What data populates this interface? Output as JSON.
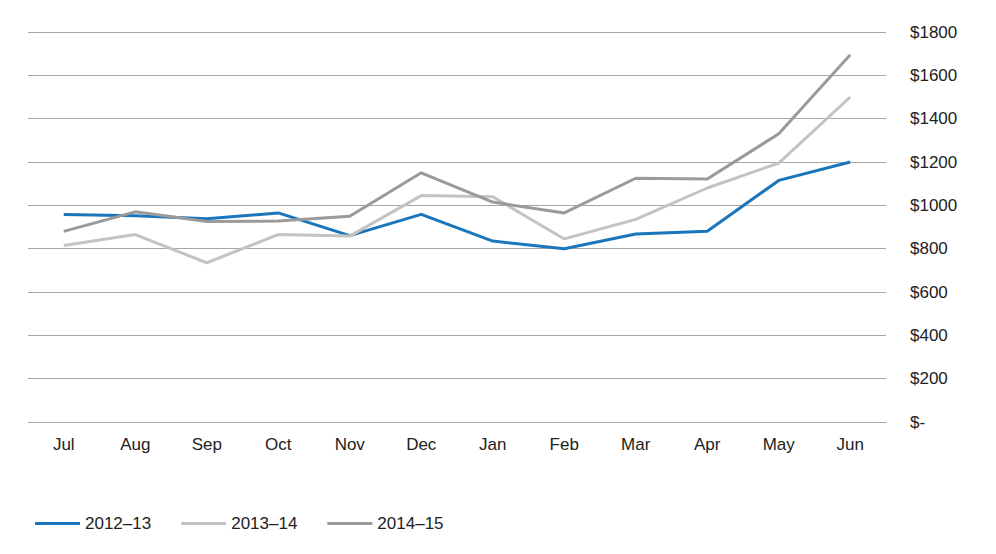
{
  "chart_data": {
    "type": "line",
    "categories": [
      "Jul",
      "Aug",
      "Sep",
      "Oct",
      "Nov",
      "Dec",
      "Jan",
      "Feb",
      "Mar",
      "Apr",
      "May",
      "Jun"
    ],
    "series": [
      {
        "name": "2012–13",
        "color": "#1a75bb",
        "values": [
          958,
          952,
          938,
          965,
          860,
          958,
          835,
          800,
          868,
          880,
          1115,
          1200
        ]
      },
      {
        "name": "2013–14",
        "color": "#c3c3c3",
        "values": [
          815,
          865,
          735,
          865,
          858,
          1045,
          1040,
          845,
          935,
          1080,
          1195,
          1500
        ]
      },
      {
        "name": "2014–15",
        "color": "#9a9a9a",
        "values": [
          880,
          970,
          925,
          928,
          950,
          1150,
          1015,
          965,
          1125,
          1122,
          1330,
          1695
        ]
      }
    ],
    "ylim": [
      0,
      1800
    ],
    "yticks": [
      {
        "value": 0,
        "label": "$-"
      },
      {
        "value": 200,
        "label": "$200"
      },
      {
        "value": 400,
        "label": "$400"
      },
      {
        "value": 600,
        "label": "$600"
      },
      {
        "value": 800,
        "label": "$800"
      },
      {
        "value": 1000,
        "label": "$1000"
      },
      {
        "value": 1200,
        "label": "$1200"
      },
      {
        "value": 1400,
        "label": "$1400"
      },
      {
        "value": 1600,
        "label": "$1600"
      },
      {
        "value": 1800,
        "label": "$1800"
      }
    ],
    "grid": true,
    "legend": "bottom-left",
    "marker": "none",
    "line_style": "solid"
  }
}
